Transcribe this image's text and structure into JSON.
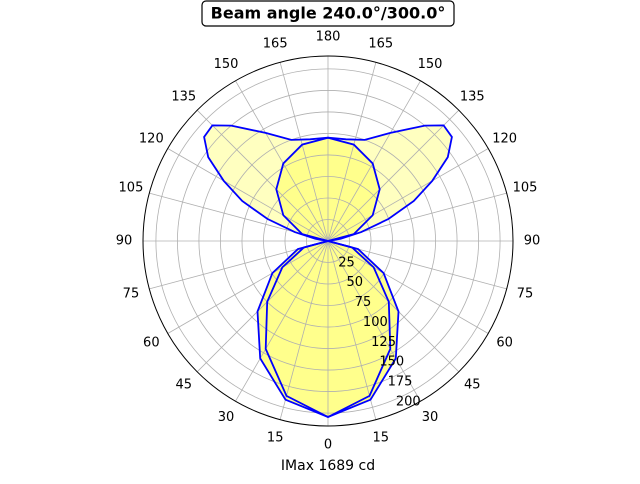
{
  "chart_data": {
    "type": "polar",
    "title": "Beam angle 240.0°/300.0°",
    "xlabel": "IMax 1689 cd",
    "rlim": [
      0,
      215
    ],
    "rticks": [
      25,
      50,
      75,
      100,
      125,
      150,
      175,
      200
    ],
    "grid": true,
    "thetaticks": [
      0,
      15,
      30,
      45,
      60,
      75,
      90,
      105,
      120,
      135,
      150,
      165,
      180,
      {
        "value": 195,
        "label": "165"
      },
      {
        "value": 210,
        "label": "150"
      },
      {
        "value": 225,
        "label": "135"
      },
      {
        "value": 240,
        "label": "120"
      },
      {
        "value": 255,
        "label": "105"
      },
      {
        "value": 270,
        "label": "90"
      },
      {
        "value": 285,
        "label": "75"
      },
      {
        "value": 300,
        "label": "60"
      },
      {
        "value": 315,
        "label": "45"
      },
      {
        "value": 330,
        "label": "30"
      },
      {
        "value": 345,
        "label": "15"
      }
    ],
    "series": [
      {
        "color": "#0000ff",
        "fill": "#ffffc0",
        "theta": [
          90,
          100,
          105,
          110,
          115,
          120,
          125,
          130,
          135,
          140,
          150,
          160,
          170,
          180,
          190,
          200,
          210,
          220,
          225,
          230,
          235,
          240,
          245,
          250,
          255,
          260,
          270
        ],
        "values": [
          0,
          15,
          40,
          75,
          110,
          140,
          170,
          188,
          190,
          175,
          145,
          125,
          120,
          120,
          120,
          125,
          145,
          175,
          190,
          188,
          170,
          140,
          110,
          75,
          40,
          15,
          0
        ]
      },
      {
        "color": "#0000ff",
        "fill": "#ffff8c",
        "theta": [
          90,
          105,
          120,
          135,
          150,
          165,
          180,
          195,
          210,
          225,
          240,
          255,
          270
        ],
        "values": [
          0,
          31,
          60,
          85,
          104,
          116,
          120,
          116,
          104,
          85,
          60,
          31,
          0
        ]
      },
      {
        "color": "#0000ff",
        "fill": "#ffff8c",
        "theta": [
          270,
          285,
          300,
          315,
          330,
          345,
          0,
          15,
          30,
          45,
          60,
          75,
          90
        ],
        "values": [
          0,
          36.2,
          74.6,
          115.9,
          157.6,
          191,
          204.5,
          191,
          157.6,
          115.9,
          74.6,
          36.2,
          0
        ]
      },
      {
        "color": "#0000ff",
        "theta": [
          270,
          285,
          300,
          315,
          330,
          345,
          0,
          15,
          30,
          45,
          60,
          75,
          90
        ],
        "values": [
          0,
          28.9,
          61.3,
          100,
          144.8,
          186.4,
          204.5,
          186.4,
          144.8,
          100,
          61.3,
          28.9,
          0
        ]
      }
    ]
  }
}
